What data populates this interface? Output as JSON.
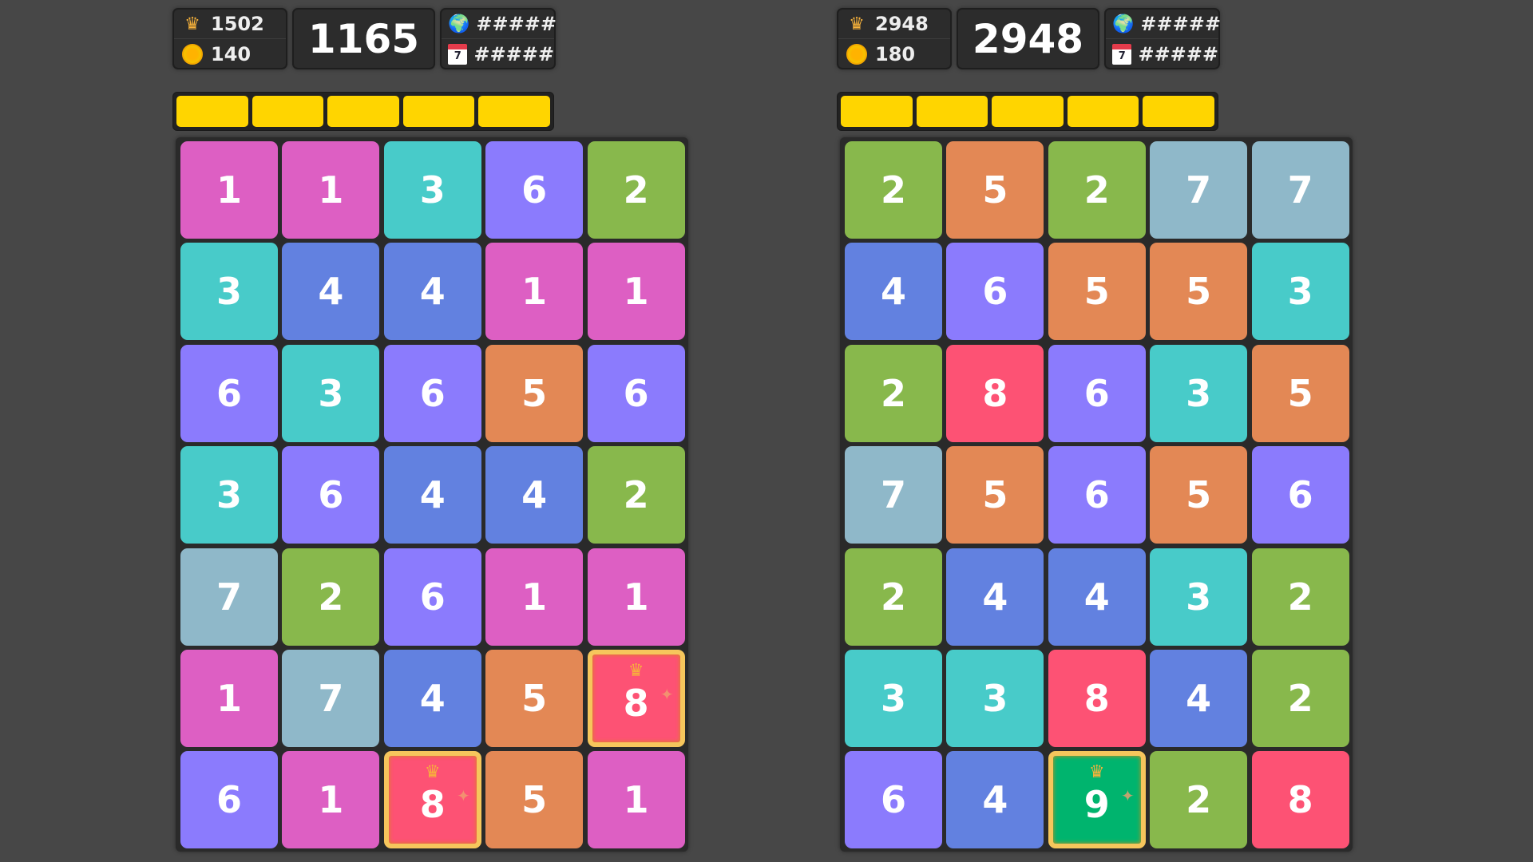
{
  "colors": {
    "1": "#dd5fc3",
    "2": "#88b84c",
    "3": "#48cbc9",
    "4": "#6281e0",
    "5": "#e38855",
    "6": "#8b7bfd",
    "7": "#8fb8c9",
    "8": "#fd5274",
    "9": "#00b46e",
    "bar": "#ffd500",
    "background": "#474747"
  },
  "boards": [
    {
      "best": "1502",
      "coins": "140",
      "score": "1165",
      "world_rank": "#####",
      "daily_rank": "#####",
      "grid": [
        [
          1,
          1,
          3,
          6,
          2
        ],
        [
          3,
          4,
          4,
          1,
          1
        ],
        [
          6,
          3,
          6,
          5,
          6
        ],
        [
          3,
          6,
          4,
          4,
          2
        ],
        [
          7,
          2,
          6,
          1,
          1
        ],
        [
          1,
          7,
          4,
          5,
          8
        ],
        [
          6,
          1,
          8,
          5,
          1
        ]
      ],
      "highlighted": [
        [
          5,
          4
        ],
        [
          6,
          2
        ]
      ]
    },
    {
      "best": "2948",
      "coins": "180",
      "score": "2948",
      "world_rank": "#####",
      "daily_rank": "#####",
      "grid": [
        [
          2,
          5,
          2,
          7,
          7
        ],
        [
          4,
          6,
          5,
          5,
          3
        ],
        [
          2,
          8,
          6,
          3,
          5
        ],
        [
          7,
          5,
          6,
          5,
          6
        ],
        [
          2,
          4,
          4,
          3,
          2
        ],
        [
          3,
          3,
          8,
          4,
          2
        ],
        [
          6,
          4,
          9,
          2,
          8
        ]
      ],
      "highlighted": [
        [
          6,
          2
        ]
      ]
    }
  ],
  "icons": {
    "best": "crown-icon",
    "coins": "coin-icon",
    "world": "globe-icon",
    "daily": "calendar-icon"
  },
  "calendar_day": "7"
}
